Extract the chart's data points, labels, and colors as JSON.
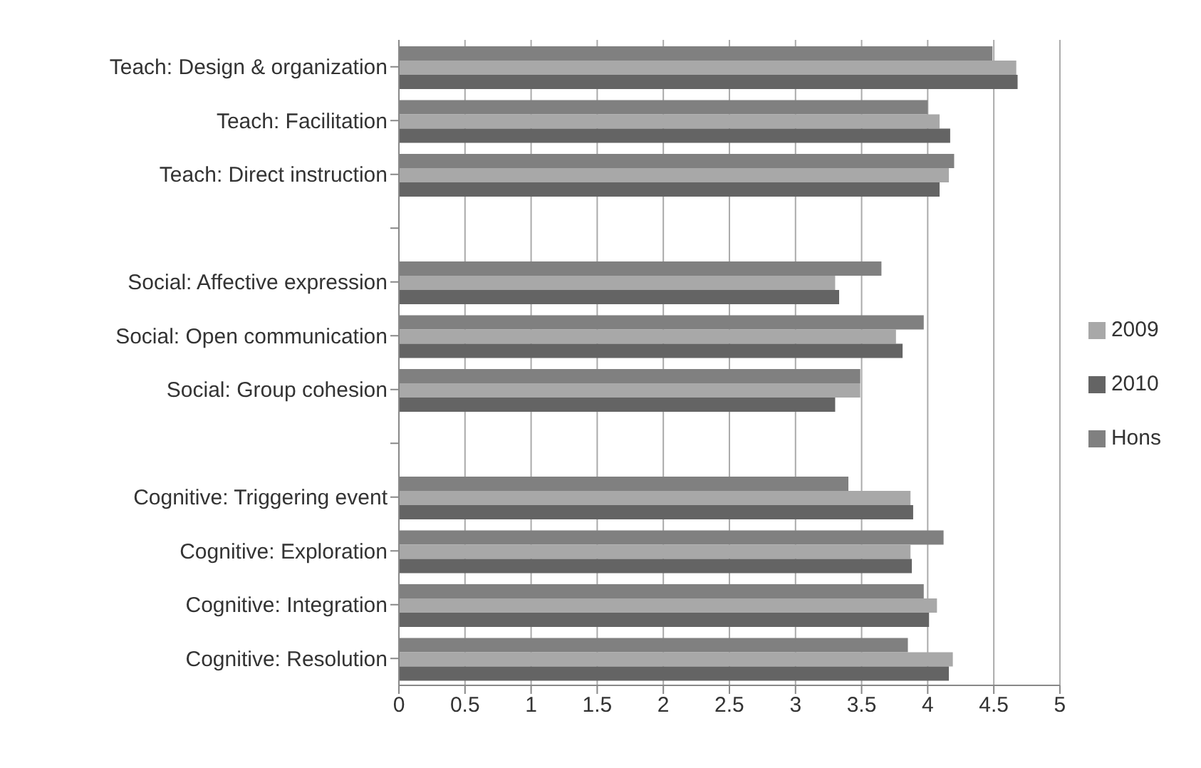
{
  "chart_data": {
    "type": "bar",
    "orientation": "horizontal",
    "categories": [
      "Teach: Design & organization",
      "Teach: Facilitation",
      "Teach: Direct instruction",
      null,
      "Social: Affective expression",
      "Social: Open communication",
      "Social: Group cohesion",
      null,
      "Cognitive: Triggering event",
      "Cognitive: Exploration",
      "Cognitive: Integration",
      "Cognitive: Resolution"
    ],
    "series": [
      {
        "name": "Hons",
        "color": "#808080",
        "values": [
          4.49,
          4.0,
          4.2,
          null,
          3.65,
          3.97,
          3.49,
          null,
          3.4,
          4.12,
          3.97,
          3.85
        ]
      },
      {
        "name": "2009",
        "color": "#a8a8a8",
        "values": [
          4.67,
          4.09,
          4.16,
          null,
          3.3,
          3.76,
          3.49,
          null,
          3.87,
          3.87,
          4.07,
          4.19
        ]
      },
      {
        "name": "2010",
        "color": "#646464",
        "values": [
          4.68,
          4.17,
          4.09,
          null,
          3.33,
          3.81,
          3.3,
          null,
          3.89,
          3.88,
          4.01,
          4.16
        ]
      }
    ],
    "xlim": [
      0,
      5
    ],
    "xticks": [
      0,
      0.5,
      1,
      1.5,
      2,
      2.5,
      3,
      3.5,
      4,
      4.5,
      5
    ],
    "grid": "x",
    "legend": "right"
  }
}
